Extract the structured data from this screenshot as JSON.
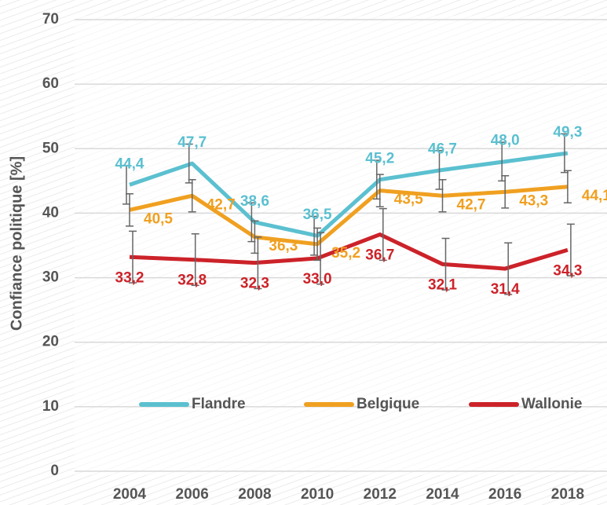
{
  "chart_data": {
    "type": "line",
    "y_label": "Confiance politique [%]",
    "categories": [
      "2004",
      "2006",
      "2008",
      "2010",
      "2012",
      "2014",
      "2016",
      "2018"
    ],
    "series": [
      {
        "name": "Flandre",
        "color": "#5bc0d0",
        "values": [
          44.4,
          47.7,
          38.6,
          36.5,
          45.2,
          46.7,
          48.0,
          49.3
        ],
        "value_labels": [
          "44,4",
          "47,7",
          "38,6",
          "36,5",
          "45,2",
          "46,7",
          "48,0",
          "49,3"
        ],
        "errors": [
          3,
          3,
          3,
          3,
          3,
          3,
          3,
          3
        ]
      },
      {
        "name": "Belgique",
        "color": "#f0a020",
        "values": [
          40.5,
          42.7,
          36.3,
          35.2,
          43.5,
          42.7,
          43.3,
          44.1
        ],
        "value_labels": [
          "40,5",
          "42,7",
          "36,3",
          "35,2",
          "43,5",
          "42,7",
          "43,3",
          "44,1"
        ],
        "errors": [
          2.5,
          2.5,
          2.5,
          2.5,
          2.5,
          2.5,
          2.5,
          2.5
        ]
      },
      {
        "name": "Wallonie",
        "color": "#cc2229",
        "values": [
          33.2,
          32.8,
          32.3,
          33.0,
          36.7,
          32.1,
          31.4,
          34.3
        ],
        "value_labels": [
          "33,2",
          "32,8",
          "32,3",
          "33,0",
          "36,7",
          "32,1",
          "31,4",
          "34,3"
        ],
        "errors": [
          4,
          4,
          4,
          4,
          4,
          4,
          4,
          4
        ]
      }
    ],
    "ylim": [
      0,
      70
    ],
    "yticks": [
      0,
      10,
      20,
      30,
      40,
      50,
      60,
      70
    ],
    "grid": true,
    "legend": "bottom"
  }
}
